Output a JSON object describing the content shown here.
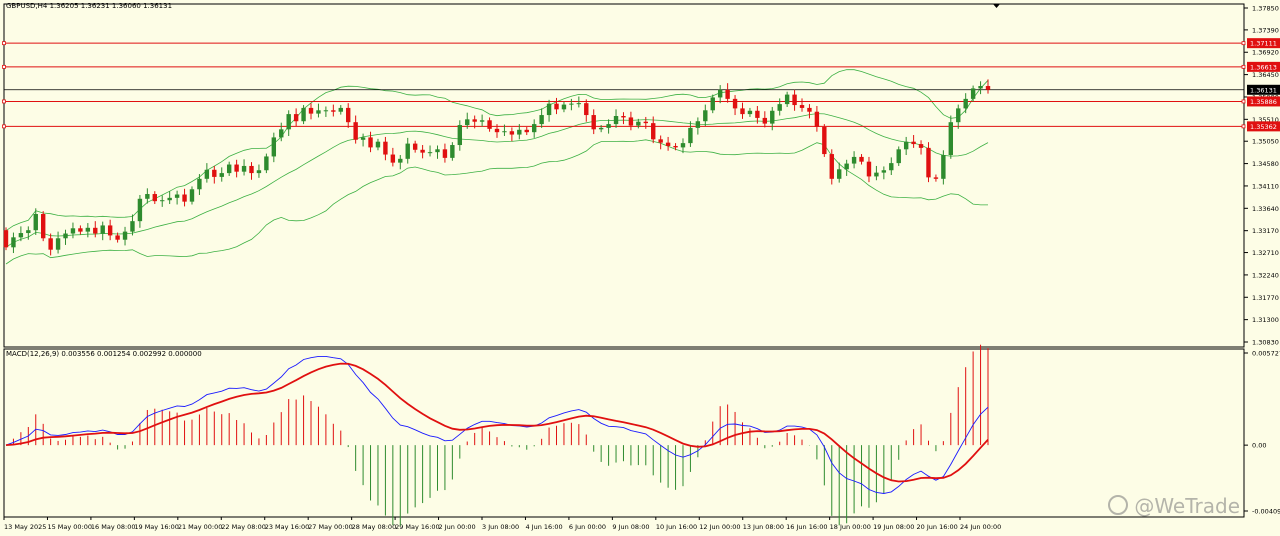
{
  "main_header": "GBPUSD,H4  1.36205 1.36231 1.36060 1.36131",
  "macd_header": "MACD(12,26,9) 0.003556 0.001254 0.002992 0.000000",
  "watermark": "@WeTrade",
  "colors": {
    "background": "#fdfde6",
    "bull": "#2e8b2e",
    "bear": "#e01010",
    "bands": "#3cb043",
    "hline": "#e01010",
    "price_line": "#000000",
    "macd_line": "#1a1aff",
    "signal_line": "#e01010"
  },
  "chart_data": [
    {
      "type": "candlestick",
      "symbol": "GBPUSD",
      "timeframe": "H4",
      "ohlc_header": {
        "open": 1.36205,
        "high": 1.36231,
        "low": 1.3606,
        "close": 1.36131
      },
      "ylim": [
        1.3083,
        1.3785
      ],
      "y_ticks": [
        "1.37850",
        "1.37390",
        "1.36920",
        "1.36450",
        "1.35980",
        "1.35510",
        "1.35050",
        "1.34580",
        "1.34110",
        "1.33640",
        "1.33170",
        "1.32710",
        "1.32240",
        "1.31770",
        "1.31300",
        "1.30830"
      ],
      "x_ticks": [
        "13 May 2025",
        "15 May 00:00",
        "16 May 08:00",
        "19 May 16:00",
        "21 May 00:00",
        "22 May 08:00",
        "23 May 16:00",
        "27 May 00:00",
        "28 May 08:00",
        "29 May 16:00",
        "2 Jun 00:00",
        "3 Jun 08:00",
        "4 Jun 16:00",
        "6 Jun 00:00",
        "9 Jun 08:00",
        "10 Jun 16:00",
        "12 Jun 00:00",
        "13 Jun 08:00",
        "16 Jun 16:00",
        "18 Jun 00:00",
        "19 Jun 08:00",
        "20 Jun 16:00",
        "24 Jun 00:00"
      ],
      "horizontal_levels": [
        {
          "value": 1.37111,
          "label": "1.37111"
        },
        {
          "value": 1.36613,
          "label": "1.36613"
        },
        {
          "value": 1.35886,
          "label": "1.35886"
        },
        {
          "value": 1.35362,
          "label": "1.35362"
        }
      ],
      "current_price": {
        "value": 1.36131,
        "label": "1.36131"
      },
      "close": [
        1.3282,
        1.3303,
        1.3312,
        1.3318,
        1.3352,
        1.3301,
        1.3277,
        1.3301,
        1.3311,
        1.3322,
        1.3315,
        1.3323,
        1.3311,
        1.3328,
        1.3307,
        1.3298,
        1.3315,
        1.3337,
        1.3384,
        1.3394,
        1.3379,
        1.3381,
        1.3386,
        1.3393,
        1.3378,
        1.3404,
        1.3426,
        1.3445,
        1.343,
        1.3438,
        1.3456,
        1.3441,
        1.3453,
        1.3438,
        1.3444,
        1.3473,
        1.3513,
        1.353,
        1.3562,
        1.3547,
        1.3575,
        1.3563,
        1.357,
        1.357,
        1.3567,
        1.3575,
        1.3545,
        1.3508,
        1.3513,
        1.3492,
        1.3504,
        1.3477,
        1.346,
        1.3468,
        1.35,
        1.3487,
        1.3481,
        1.3482,
        1.3488,
        1.347,
        1.3497,
        1.3539,
        1.3551,
        1.3546,
        1.3549,
        1.3531,
        1.3524,
        1.3526,
        1.3519,
        1.3529,
        1.3524,
        1.3541,
        1.356,
        1.3584,
        1.3572,
        1.3582,
        1.3584,
        1.3585,
        1.356,
        1.353,
        1.3533,
        1.3541,
        1.3558,
        1.3555,
        1.3538,
        1.3546,
        1.3543,
        1.3509,
        1.3502,
        1.3495,
        1.3492,
        1.3501,
        1.3533,
        1.3547,
        1.357,
        1.3597,
        1.3613,
        1.3594,
        1.3574,
        1.3562,
        1.3569,
        1.3554,
        1.3542,
        1.3569,
        1.3583,
        1.3603,
        1.3581,
        1.3575,
        1.3567,
        1.3535,
        1.3478,
        1.3426,
        1.3446,
        1.3458,
        1.3472,
        1.3462,
        1.3431,
        1.3439,
        1.3444,
        1.3459,
        1.3488,
        1.3504,
        1.3499,
        1.3491,
        1.3429,
        1.3426,
        1.3476,
        1.3545,
        1.3574,
        1.3594,
        1.3616,
        1.3621,
        1.3613
      ]
    },
    {
      "type": "macd",
      "name": "MACD(12,26,9)",
      "values": {
        "histogram": 0.003556,
        "signal": 0.001254,
        "main": 0.002992,
        "last": 0.0
      },
      "ylim": [
        -0.004094,
        0.005727
      ],
      "y_ticks": [
        "0.005727",
        "0.00",
        "-0.004094"
      ]
    }
  ]
}
